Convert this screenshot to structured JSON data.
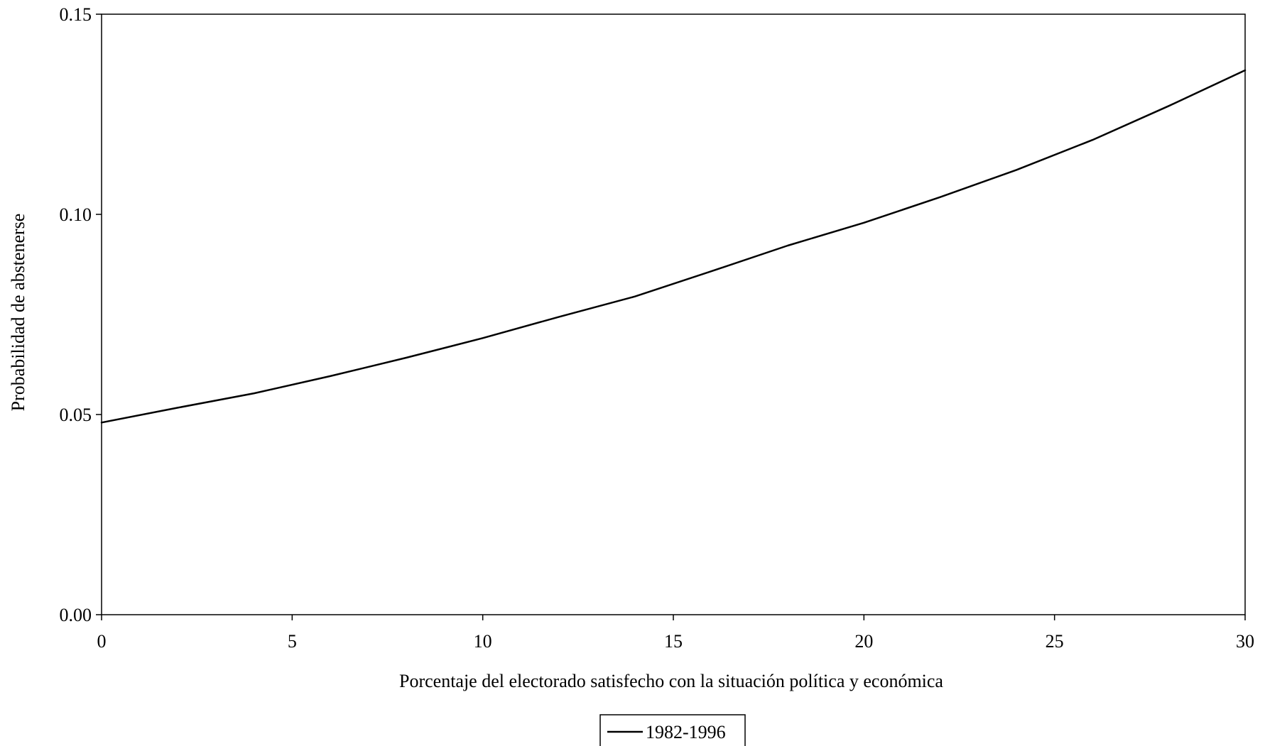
{
  "chart_data": {
    "type": "line",
    "title": "",
    "xlabel": "Porcentaje del electorado satisfecho con la situación política y económica",
    "ylabel": "Probabilidad de abstenerse",
    "xlim": [
      0,
      30
    ],
    "ylim": [
      0,
      0.15
    ],
    "x_ticks": [
      0,
      5,
      10,
      15,
      20,
      25,
      30
    ],
    "x_tick_labels": [
      "0",
      "5",
      "10",
      "15",
      "20",
      "25",
      "30"
    ],
    "y_ticks": [
      0,
      0.05,
      0.1,
      0.15
    ],
    "y_tick_labels": [
      "0.00",
      "0.05",
      "0.10",
      "0.15"
    ],
    "grid": false,
    "legend_position": "bottom-center",
    "series": [
      {
        "name": "1982-1996",
        "color": "#000000",
        "x": [
          0,
          2,
          4,
          6,
          8,
          10,
          12,
          14,
          16,
          18,
          20,
          22,
          24,
          26,
          28,
          30
        ],
        "y": [
          0.048,
          0.0517,
          0.0553,
          0.0596,
          0.0642,
          0.0691,
          0.0744,
          0.0795,
          0.0858,
          0.0922,
          0.0979,
          0.1043,
          0.1111,
          0.1186,
          0.1271,
          0.136
        ]
      }
    ]
  }
}
